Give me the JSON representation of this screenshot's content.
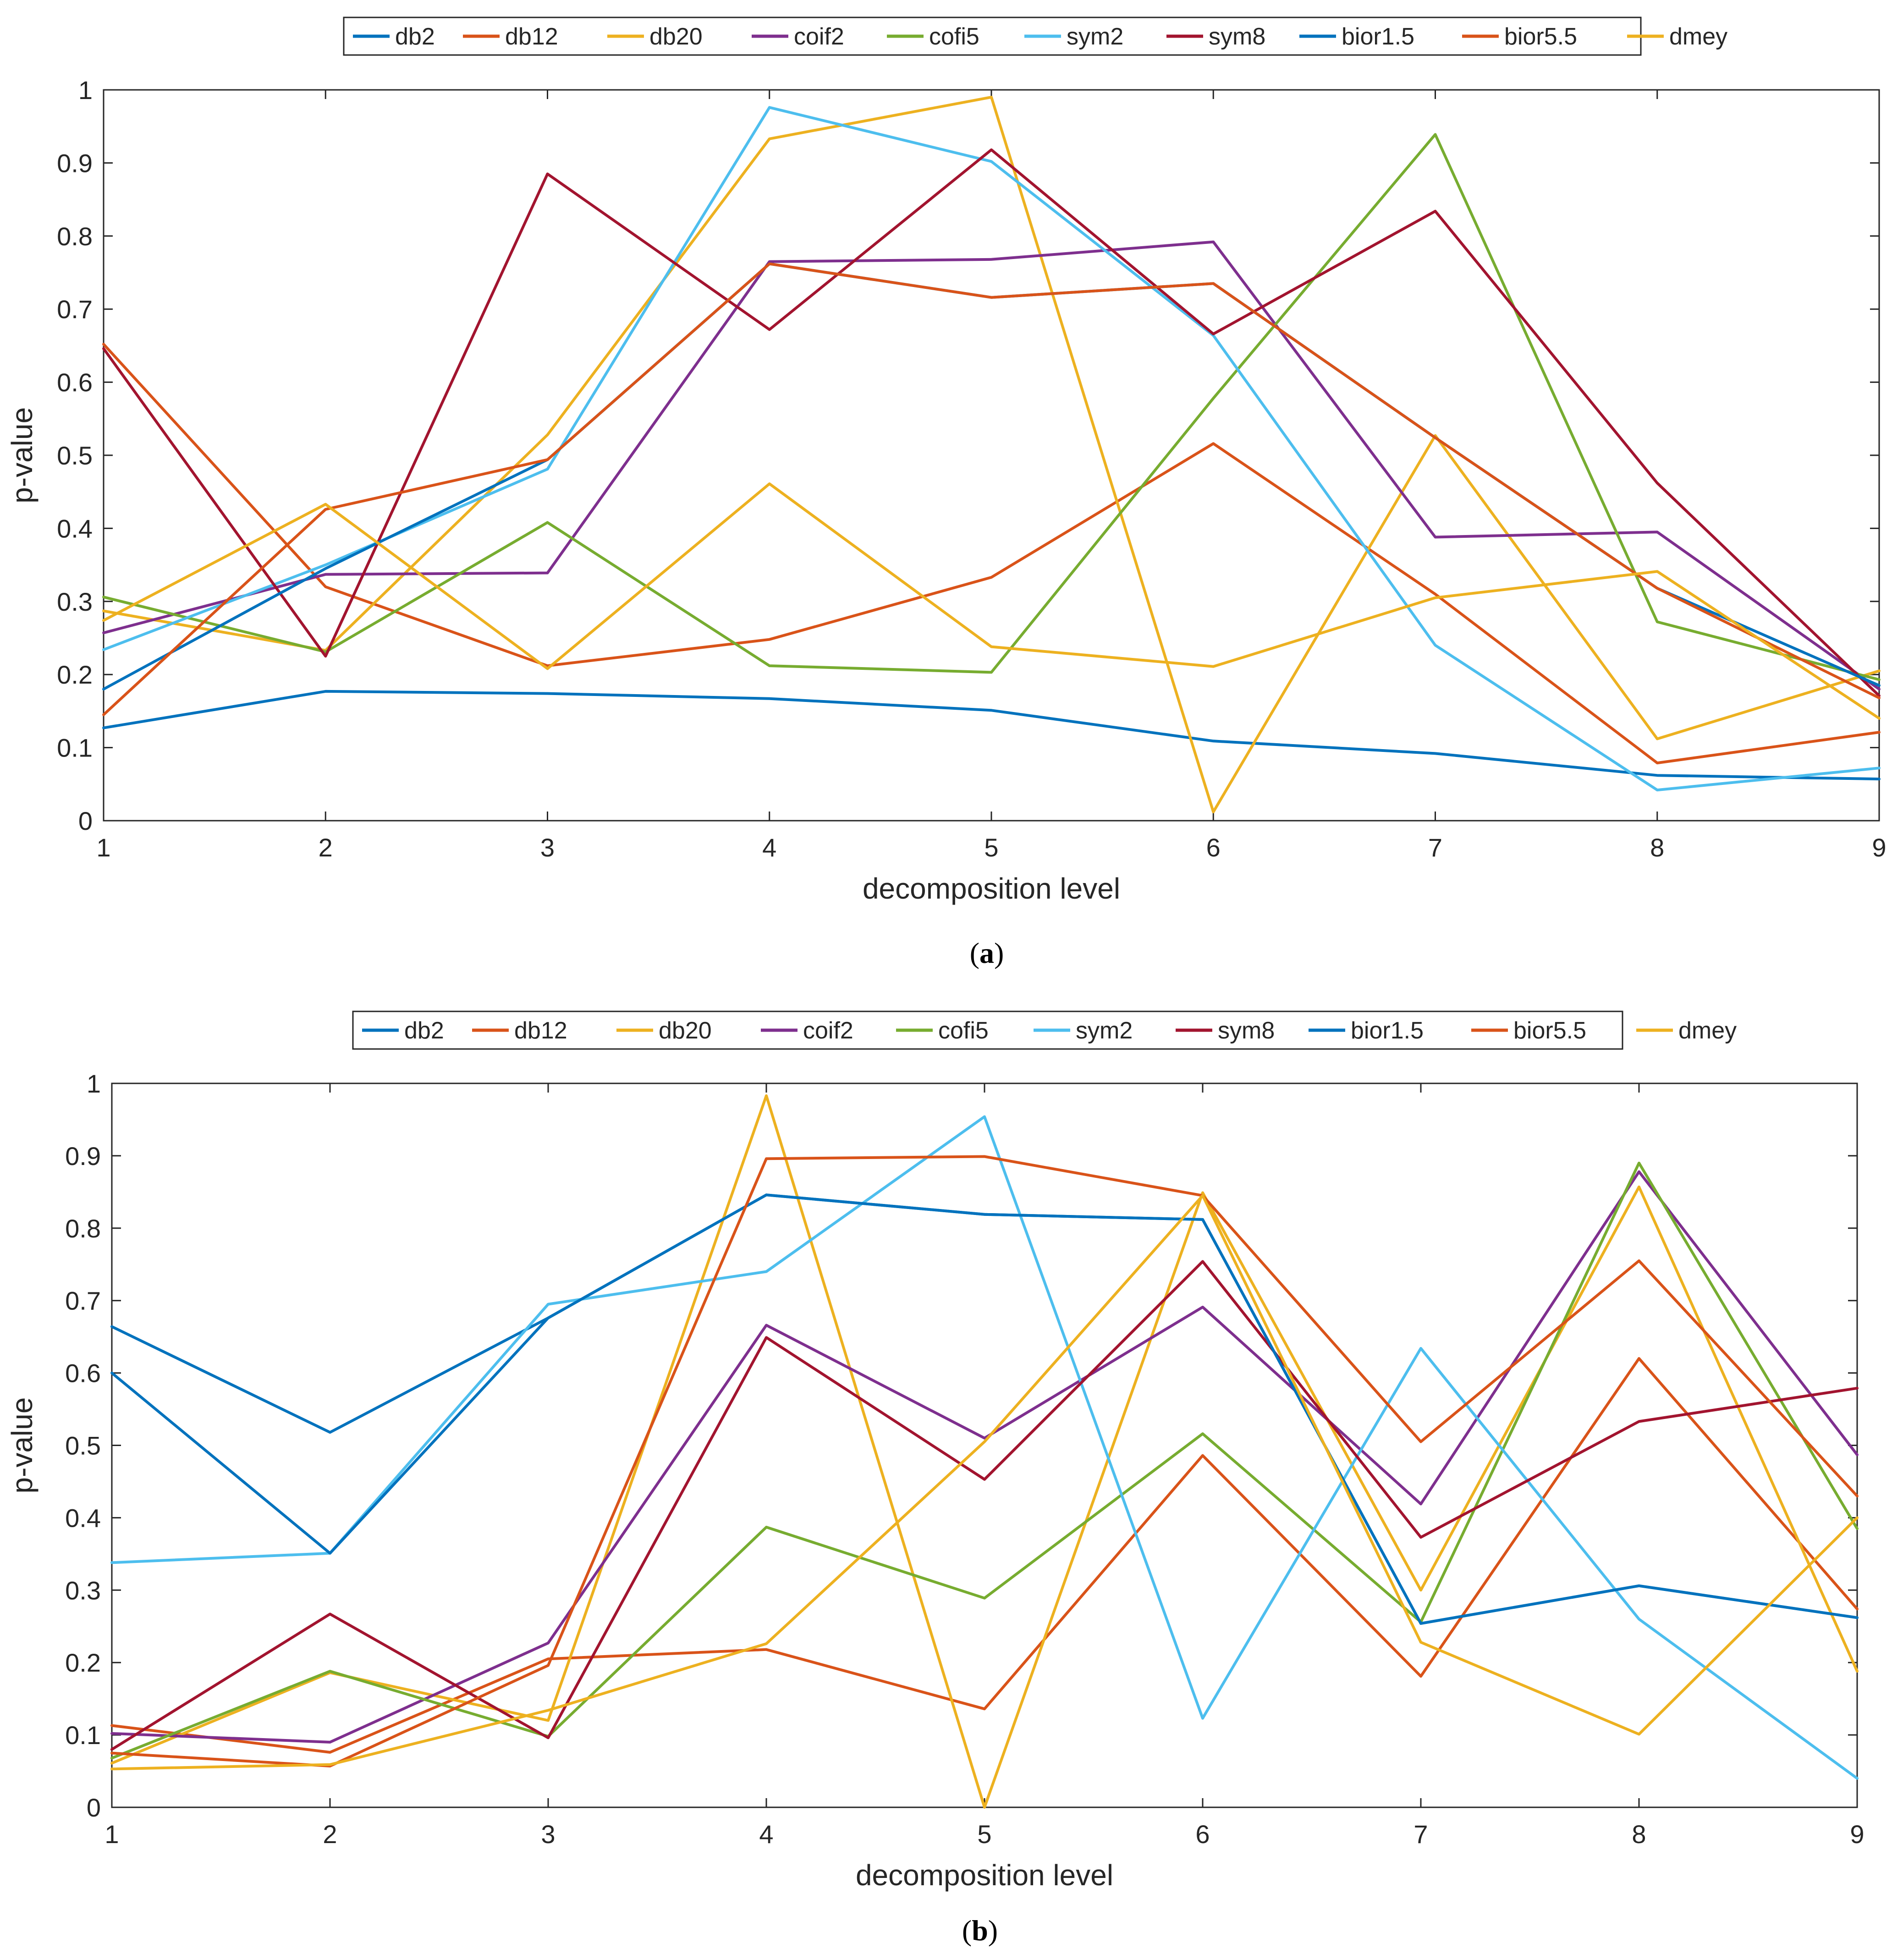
{
  "chart_data": [
    {
      "type": "line",
      "panel": "a",
      "caption_letter": "a",
      "xlabel": "decomposition level",
      "ylabel": "p-value",
      "xlim": [
        1,
        9
      ],
      "ylim": [
        0,
        1
      ],
      "xticks": [
        "1",
        "2",
        "3",
        "4",
        "5",
        "6",
        "7",
        "8",
        "9"
      ],
      "yticks": [
        "0",
        "0.1",
        "0.2",
        "0.3",
        "0.4",
        "0.5",
        "0.6",
        "0.7",
        "0.8",
        "0.9",
        "1"
      ],
      "grid": false,
      "legend_position": "top-center-outside",
      "x": [
        1,
        2,
        3,
        4,
        5,
        6,
        7,
        8,
        9
      ],
      "series": [
        {
          "name": "db2",
          "color": "#0072BD",
          "values": [
            0.127,
            0.177,
            0.174,
            0.167,
            0.151,
            0.109,
            0.092,
            0.062,
            0.057
          ]
        },
        {
          "name": "db12",
          "color": "#D95319",
          "values": [
            0.652,
            0.32,
            0.212,
            0.248,
            0.333,
            0.516,
            0.31,
            0.079,
            0.121
          ]
        },
        {
          "name": "db20",
          "color": "#EDB120",
          "values": [
            0.287,
            0.233,
            0.528,
            0.933,
            0.99,
            0.012,
            0.527,
            0.112,
            0.205
          ]
        },
        {
          "name": "coif2",
          "color": "#7E2F8E",
          "values": [
            0.257,
            0.337,
            0.339,
            0.765,
            0.768,
            0.792,
            0.388,
            0.395,
            0.18
          ]
        },
        {
          "name": "cofi5",
          "color": "#77AC30",
          "values": [
            0.306,
            0.231,
            0.408,
            0.212,
            0.203,
            0.578,
            0.939,
            0.272,
            0.193
          ]
        },
        {
          "name": "sym2",
          "color": "#4DBEEE",
          "values": [
            0.234,
            0.35,
            0.481,
            0.976,
            0.902,
            0.664,
            0.24,
            0.042,
            0.072
          ]
        },
        {
          "name": "sym8",
          "color": "#A2142F",
          "values": [
            0.646,
            0.225,
            0.885,
            0.672,
            0.918,
            0.666,
            0.834,
            0.462,
            0.171
          ]
        },
        {
          "name": "bior1.5",
          "color": "#0072BD",
          "values": [
            0.18,
            0.345,
            0.494,
            0.762,
            0.716,
            0.735,
            0.524,
            0.318,
            0.185
          ]
        },
        {
          "name": "bior5.5",
          "color": "#D95319",
          "values": [
            0.145,
            0.426,
            0.494,
            0.762,
            0.716,
            0.735,
            0.524,
            0.318,
            0.168
          ]
        },
        {
          "name": "dmey",
          "color": "#EDB120",
          "values": [
            0.274,
            0.433,
            0.208,
            0.461,
            0.238,
            0.211,
            0.305,
            0.341,
            0.14
          ]
        }
      ]
    },
    {
      "type": "line",
      "panel": "b",
      "caption_letter": "b",
      "xlabel": "decomposition level",
      "ylabel": "p-value",
      "xlim": [
        1,
        9
      ],
      "ylim": [
        0,
        1
      ],
      "xticks": [
        "1",
        "2",
        "3",
        "4",
        "5",
        "6",
        "7",
        "8",
        "9"
      ],
      "yticks": [
        "0",
        "0.1",
        "0.2",
        "0.3",
        "0.4",
        "0.5",
        "0.6",
        "0.7",
        "0.8",
        "0.9",
        "1"
      ],
      "grid": false,
      "legend_position": "top-center-outside",
      "x": [
        1,
        2,
        3,
        4,
        5,
        6,
        7,
        8,
        9
      ],
      "series": [
        {
          "name": "db2",
          "color": "#0072BD",
          "values": [
            0.664,
            0.518,
            0.676,
            0.846,
            0.819,
            0.812,
            0.254,
            0.306,
            0.262
          ]
        },
        {
          "name": "db12",
          "color": "#D95319",
          "values": [
            0.113,
            0.076,
            0.205,
            0.218,
            0.136,
            0.486,
            0.181,
            0.62,
            0.274
          ]
        },
        {
          "name": "db20",
          "color": "#EDB120",
          "values": [
            0.061,
            0.186,
            0.12,
            0.983,
            0.0,
            0.849,
            0.3,
            0.857,
            0.188
          ]
        },
        {
          "name": "coif2",
          "color": "#7E2F8E",
          "values": [
            0.102,
            0.09,
            0.227,
            0.666,
            0.51,
            0.691,
            0.419,
            0.878,
            0.487
          ]
        },
        {
          "name": "cofi5",
          "color": "#77AC30",
          "values": [
            0.068,
            0.188,
            0.098,
            0.387,
            0.289,
            0.516,
            0.256,
            0.89,
            0.385
          ]
        },
        {
          "name": "sym2",
          "color": "#4DBEEE",
          "values": [
            0.338,
            0.351,
            0.695,
            0.74,
            0.954,
            0.123,
            0.634,
            0.26,
            0.04
          ]
        },
        {
          "name": "sym8",
          "color": "#A2142F",
          "values": [
            0.08,
            0.267,
            0.096,
            0.649,
            0.453,
            0.754,
            0.373,
            0.533,
            0.579
          ]
        },
        {
          "name": "bior1.5",
          "color": "#0072BD",
          "values": [
            0.6,
            0.351,
            0.676,
            0.846,
            0.819,
            0.812,
            0.254,
            0.306,
            0.262
          ]
        },
        {
          "name": "bior5.5",
          "color": "#D95319",
          "values": [
            0.075,
            0.057,
            0.196,
            0.896,
            0.899,
            0.845,
            0.505,
            0.755,
            0.43
          ]
        },
        {
          "name": "dmey",
          "color": "#EDB120",
          "values": [
            0.053,
            0.059,
            0.134,
            0.226,
            0.505,
            0.845,
            0.228,
            0.101,
            0.4
          ]
        }
      ]
    }
  ]
}
